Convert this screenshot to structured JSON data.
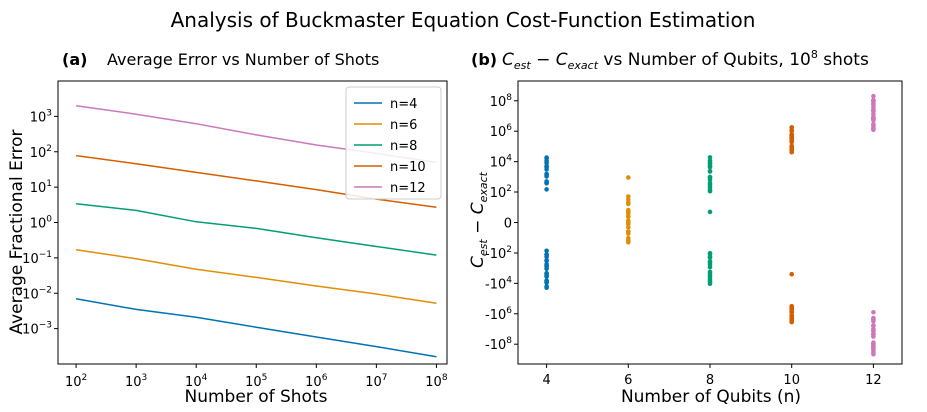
{
  "figure": {
    "suptitle": "Analysis of Buckmaster Equation Cost-Function Estimation"
  },
  "chart_data": [
    {
      "type": "line",
      "panel_label": "(a)",
      "title": "Average Error vs Number of Shots",
      "xlabel": "Number of Shots",
      "ylabel": "Average Fractional Error",
      "xscale": "log",
      "yscale": "log",
      "xlim": [
        50,
        150000000
      ],
      "ylim": [
        0.0001,
        10000
      ],
      "x": [
        100,
        1000,
        10000,
        100000,
        1000000,
        10000000,
        100000000
      ],
      "xtick_labels": [
        {
          "base": "10",
          "exp": "2"
        },
        {
          "base": "10",
          "exp": "3"
        },
        {
          "base": "10",
          "exp": "4"
        },
        {
          "base": "10",
          "exp": "5"
        },
        {
          "base": "10",
          "exp": "6"
        },
        {
          "base": "10",
          "exp": "7"
        },
        {
          "base": "10",
          "exp": "8"
        }
      ],
      "ytick_values": [
        0.001,
        0.01,
        0.1,
        1,
        10,
        100,
        1000
      ],
      "ytick_labels": [
        {
          "base": "10",
          "exp": "−3"
        },
        {
          "base": "10",
          "exp": "−2"
        },
        {
          "base": "10",
          "exp": "−1"
        },
        {
          "base": "10",
          "exp": "0"
        },
        {
          "base": "10",
          "exp": "1"
        },
        {
          "base": "10",
          "exp": "2"
        },
        {
          "base": "10",
          "exp": "3"
        }
      ],
      "legend_position": "top-right",
      "grid": false,
      "series": [
        {
          "name": "n=4",
          "color": "#0173b2",
          "values": [
            0.007,
            0.0035,
            0.0021,
            0.0011,
            0.00058,
            0.00031,
            0.00016
          ]
        },
        {
          "name": "n=6",
          "color": "#de8f05",
          "values": [
            0.17,
            0.095,
            0.048,
            0.028,
            0.016,
            0.0095,
            0.0052
          ]
        },
        {
          "name": "n=8",
          "color": "#029e73",
          "values": [
            3.4,
            2.2,
            1.05,
            0.68,
            0.37,
            0.21,
            0.12
          ]
        },
        {
          "name": "n=10",
          "color": "#d55e00",
          "values": [
            78,
            46,
            26,
            15,
            8.5,
            4.6,
            2.7
          ]
        },
        {
          "name": "n=12",
          "color": "#cc78bc",
          "values": [
            2000,
            1150,
            620,
            300,
            155,
            90,
            50
          ]
        }
      ]
    },
    {
      "type": "scatter",
      "panel_label": "(b)",
      "title_parts": {
        "c_est": "C",
        "est": "est",
        "minus": " − ",
        "c_exact": "C",
        "exact": "exact",
        "rest": " vs Number of Qubits, ",
        "base": "10",
        "exp": "8",
        "tail": " shots"
      },
      "xlabel": "Number of Qubits (n)",
      "ylabel_parts": {
        "c_est": "C",
        "est": "est",
        "minus": " − ",
        "c_exact": "C",
        "exact": "exact"
      },
      "xscale": "linear",
      "yscale": "symlog",
      "xlim": [
        3.3,
        12.7
      ],
      "ylim": [
        -2000000000,
        2000000000
      ],
      "xticks": [
        "4",
        "6",
        "8",
        "10",
        "12"
      ],
      "ytick_values": [
        -100000000,
        -1000000,
        -10000,
        -100,
        0,
        100,
        10000,
        1000000,
        100000000
      ],
      "ytick_labels": [
        {
          "base": "-10",
          "exp": "8"
        },
        {
          "base": "-10",
          "exp": "6"
        },
        {
          "base": "-10",
          "exp": "4"
        },
        {
          "base": "-10",
          "exp": "2"
        },
        {
          "base": "0",
          "exp": ""
        },
        {
          "base": "10",
          "exp": "2"
        },
        {
          "base": "10",
          "exp": "4"
        },
        {
          "base": "10",
          "exp": "6"
        },
        {
          "base": "10",
          "exp": "8"
        }
      ],
      "grid": false,
      "series": [
        {
          "name": "n=4",
          "color": "#0173b2",
          "x": 4,
          "ranges": [
            [
              150,
              30000
            ],
            [
              -50,
              -30000
            ]
          ],
          "points_per_range": [
            14,
            20
          ]
        },
        {
          "name": "n=6",
          "color": "#de8f05",
          "x": 6,
          "ranges": [
            [
              60,
              -40
            ]
          ],
          "points_per_range": [
            22
          ],
          "extra": [
            900
          ]
        },
        {
          "name": "n=8",
          "color": "#029e73",
          "x": 8,
          "ranges": [
            [
              80,
              25000
            ],
            [
              -50,
              -25000
            ]
          ],
          "points_per_range": [
            16,
            16
          ],
          "extra": [
            4
          ]
        },
        {
          "name": "n=10",
          "color": "#d55e00",
          "x": 10,
          "ranges": [
            [
              30000,
              2500000
            ],
            [
              -250000,
              -4000000
            ]
          ],
          "points_per_range": [
            22,
            18
          ],
          "extra": [
            -2500
          ]
        },
        {
          "name": "n=12",
          "color": "#cc78bc",
          "x": 12,
          "ranges": [
            [
              1000000,
              250000000
            ],
            [
              -1000000,
              -700000000
            ]
          ],
          "points_per_range": [
            24,
            24
          ],
          "extra": [
            -800000
          ]
        }
      ]
    }
  ]
}
